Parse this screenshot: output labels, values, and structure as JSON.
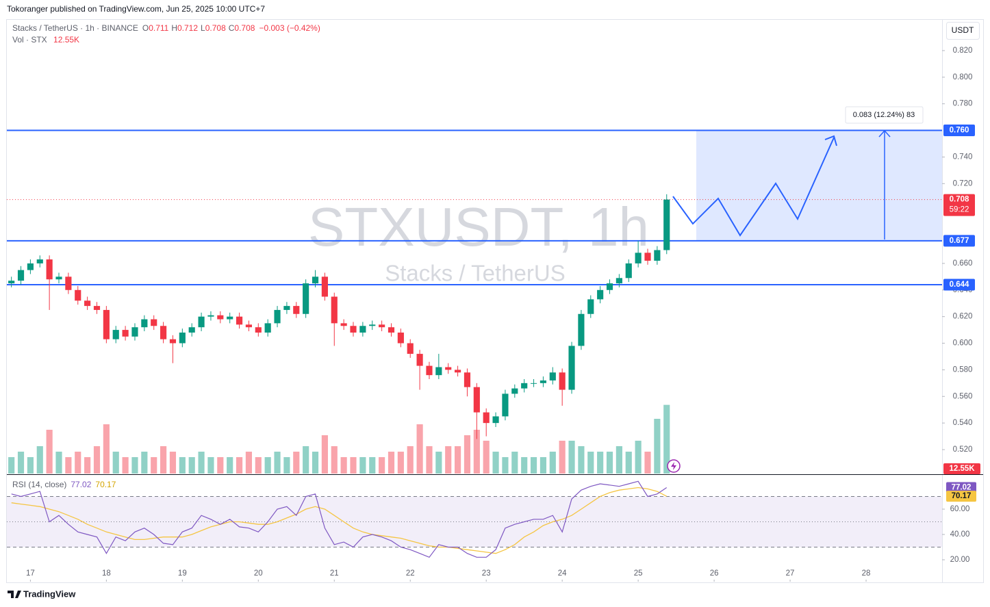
{
  "header": {
    "published": "Tokoranger published on TradingView.com, Jun 25, 2025 10:00 UTC+7",
    "symbol": "Stacks / TetherUS · 1h · BINANCE",
    "ohlc": [
      {
        "k": "O",
        "v": "0.711"
      },
      {
        "k": "H",
        "v": "0.712"
      },
      {
        "k": "L",
        "v": "0.708"
      },
      {
        "k": "C",
        "v": "0.708"
      }
    ],
    "change": "−0.003 (−0.42%)",
    "vol_name": "Vol · STX",
    "vol_value": "12.55K",
    "watermark": "STXUSDT, 1h",
    "watermark_sub": "Stacks / TetherUS",
    "currency": "USDT",
    "countdown": "59:22",
    "measure": "0.083 (12.24%) 83",
    "brand": "TradingView"
  },
  "chart_data": [
    {
      "type": "candlestick",
      "up_color": "#089981",
      "down_color": "#f23645",
      "xlim": [
        16.69,
        29.0
      ],
      "ylim": [
        0.502,
        0.8426
      ],
      "x": [
        16.75,
        16.875,
        17,
        17.125,
        17.25,
        17.375,
        17.5,
        17.625,
        17.75,
        17.875,
        18,
        18.125,
        18.25,
        18.375,
        18.5,
        18.625,
        18.75,
        18.875,
        19,
        19.125,
        19.25,
        19.375,
        19.5,
        19.625,
        19.75,
        19.875,
        20,
        20.125,
        20.25,
        20.375,
        20.5,
        20.625,
        20.75,
        20.875,
        21,
        21.125,
        21.25,
        21.375,
        21.5,
        21.625,
        21.75,
        21.875,
        22,
        22.125,
        22.25,
        22.375,
        22.5,
        22.625,
        22.75,
        22.875,
        23,
        23.125,
        23.25,
        23.375,
        23.5,
        23.625,
        23.75,
        23.875,
        24,
        24.125,
        24.25,
        24.375,
        24.5,
        24.625,
        24.75,
        24.875,
        25,
        25.125,
        25.25,
        25.375
      ],
      "open": [
        0.645,
        0.647,
        0.655,
        0.66,
        0.663,
        0.648,
        0.65,
        0.64,
        0.632,
        0.628,
        0.625,
        0.603,
        0.61,
        0.605,
        0.612,
        0.618,
        0.613,
        0.603,
        0.6,
        0.608,
        0.612,
        0.62,
        0.621,
        0.618,
        0.62,
        0.614,
        0.612,
        0.608,
        0.615,
        0.625,
        0.628,
        0.622,
        0.645,
        0.65,
        0.635,
        0.615,
        0.613,
        0.608,
        0.613,
        0.614,
        0.612,
        0.608,
        0.6,
        0.592,
        0.583,
        0.576,
        0.582,
        0.58,
        0.578,
        0.567,
        0.548,
        0.54,
        0.545,
        0.562,
        0.566,
        0.57,
        0.57,
        0.572,
        0.578,
        0.565,
        0.598,
        0.622,
        0.633,
        0.64,
        0.645,
        0.649,
        0.66,
        0.668,
        0.662,
        0.67
      ],
      "high": [
        0.65,
        0.658,
        0.663,
        0.666,
        0.666,
        0.653,
        0.653,
        0.643,
        0.635,
        0.631,
        0.628,
        0.613,
        0.613,
        0.615,
        0.621,
        0.621,
        0.616,
        0.606,
        0.611,
        0.615,
        0.623,
        0.624,
        0.624,
        0.623,
        0.623,
        0.617,
        0.615,
        0.618,
        0.628,
        0.631,
        0.631,
        0.648,
        0.655,
        0.653,
        0.638,
        0.618,
        0.616,
        0.616,
        0.617,
        0.617,
        0.615,
        0.611,
        0.603,
        0.595,
        0.586,
        0.592,
        0.585,
        0.583,
        0.581,
        0.57,
        0.551,
        0.548,
        0.565,
        0.569,
        0.573,
        0.573,
        0.575,
        0.582,
        0.581,
        0.601,
        0.625,
        0.636,
        0.643,
        0.648,
        0.652,
        0.663,
        0.677,
        0.671,
        0.673,
        0.712
      ],
      "low": [
        0.642,
        0.644,
        0.652,
        0.657,
        0.625,
        0.645,
        0.637,
        0.629,
        0.625,
        0.622,
        0.6,
        0.6,
        0.602,
        0.602,
        0.609,
        0.61,
        0.6,
        0.585,
        0.597,
        0.605,
        0.609,
        0.617,
        0.615,
        0.615,
        0.611,
        0.609,
        0.605,
        0.605,
        0.612,
        0.622,
        0.619,
        0.619,
        0.642,
        0.632,
        0.598,
        0.61,
        0.605,
        0.605,
        0.61,
        0.609,
        0.605,
        0.597,
        0.589,
        0.565,
        0.573,
        0.573,
        0.577,
        0.575,
        0.56,
        0.528,
        0.53,
        0.537,
        0.542,
        0.559,
        0.563,
        0.567,
        0.567,
        0.569,
        0.553,
        0.562,
        0.595,
        0.619,
        0.63,
        0.637,
        0.642,
        0.646,
        0.657,
        0.659,
        0.659,
        0.667
      ],
      "close": [
        0.647,
        0.655,
        0.66,
        0.663,
        0.648,
        0.65,
        0.64,
        0.632,
        0.628,
        0.625,
        0.603,
        0.61,
        0.605,
        0.612,
        0.618,
        0.613,
        0.603,
        0.6,
        0.608,
        0.612,
        0.62,
        0.621,
        0.618,
        0.62,
        0.614,
        0.612,
        0.608,
        0.615,
        0.625,
        0.628,
        0.622,
        0.645,
        0.65,
        0.635,
        0.615,
        0.613,
        0.608,
        0.613,
        0.614,
        0.612,
        0.608,
        0.6,
        0.592,
        0.583,
        0.576,
        0.582,
        0.58,
        0.578,
        0.567,
        0.548,
        0.54,
        0.545,
        0.562,
        0.566,
        0.57,
        0.57,
        0.572,
        0.578,
        0.565,
        0.598,
        0.622,
        0.633,
        0.64,
        0.645,
        0.649,
        0.66,
        0.668,
        0.662,
        0.67,
        0.708
      ],
      "volume": [
        3,
        4,
        3,
        5,
        8,
        4,
        3,
        4,
        3,
        5,
        9,
        4,
        3,
        3,
        4,
        3,
        5,
        4,
        3,
        3,
        4,
        3,
        3,
        3,
        3,
        4,
        3,
        3,
        4,
        3,
        4,
        5,
        4,
        7,
        5,
        3,
        3,
        3,
        3,
        3,
        4,
        4,
        5,
        9,
        5,
        4,
        5,
        5,
        7,
        8,
        6,
        4,
        3,
        4,
        3,
        3,
        3,
        4,
        6,
        6,
        5,
        4,
        4,
        4,
        5,
        4,
        6,
        4,
        10,
        12.55
      ],
      "yticks": [
        {
          "value": 0.52,
          "label": "0.520"
        },
        {
          "value": 0.54,
          "label": "0.540"
        },
        {
          "value": 0.56,
          "label": "0.560"
        },
        {
          "value": 0.58,
          "label": "0.580"
        },
        {
          "value": 0.6,
          "label": "0.600"
        },
        {
          "value": 0.62,
          "label": "0.620"
        },
        {
          "value": 0.64,
          "label": "0.640"
        },
        {
          "value": 0.66,
          "label": "0.660"
        },
        {
          "value": 0.72,
          "label": "0.720"
        },
        {
          "value": 0.74,
          "label": "0.740"
        },
        {
          "value": 0.78,
          "label": "0.780"
        },
        {
          "value": 0.8,
          "label": "0.800"
        },
        {
          "value": 0.82,
          "label": "0.820"
        }
      ],
      "levels": [
        {
          "value": 0.76,
          "label": "0.760"
        },
        {
          "value": 0.677,
          "label": "0.677"
        },
        {
          "value": 0.644,
          "label": "0.644"
        }
      ],
      "level_color": "#2962ff"
    },
    {
      "type": "line",
      "title": "RSI (14, close)",
      "xlim": [
        16.69,
        29.0
      ],
      "ylim": [
        2.7,
        85.4
      ],
      "x": [
        16.75,
        16.875,
        17,
        17.125,
        17.25,
        17.375,
        17.5,
        17.625,
        17.75,
        17.875,
        18,
        18.125,
        18.25,
        18.375,
        18.5,
        18.625,
        18.75,
        18.875,
        19,
        19.125,
        19.25,
        19.375,
        19.5,
        19.625,
        19.75,
        19.875,
        20,
        20.125,
        20.25,
        20.375,
        20.5,
        20.625,
        20.75,
        20.875,
        21,
        21.125,
        21.25,
        21.375,
        21.5,
        21.625,
        21.75,
        21.875,
        22,
        22.125,
        22.25,
        22.375,
        22.5,
        22.625,
        22.75,
        22.875,
        23,
        23.125,
        23.25,
        23.375,
        23.5,
        23.625,
        23.75,
        23.875,
        24,
        24.125,
        24.25,
        24.375,
        24.5,
        24.625,
        24.75,
        24.875,
        25,
        25.125,
        25.25,
        25.375
      ],
      "series": [
        {
          "color": "#7e57c2",
          "values": [
            72,
            70,
            72,
            74,
            50,
            55,
            48,
            42,
            40,
            38,
            25,
            38,
            35,
            42,
            45,
            40,
            33,
            32,
            42,
            45,
            55,
            52,
            48,
            52,
            46,
            45,
            42,
            50,
            60,
            62,
            55,
            70,
            72,
            45,
            32,
            34,
            30,
            38,
            40,
            38,
            35,
            30,
            28,
            25,
            22,
            32,
            30,
            30,
            25,
            22,
            22,
            28,
            45,
            48,
            50,
            52,
            52,
            55,
            42,
            68,
            75,
            78,
            80,
            79,
            78,
            80,
            82,
            70,
            72,
            77.02
          ]
        },
        {
          "color": "#f5c542",
          "values": [
            65,
            64,
            63,
            62,
            60,
            58,
            55,
            52,
            48,
            45,
            42,
            40,
            38,
            36,
            36,
            37,
            38,
            38,
            38,
            40,
            43,
            46,
            48,
            50,
            50,
            49,
            48,
            48,
            50,
            53,
            56,
            60,
            62,
            60,
            55,
            50,
            45,
            42,
            40,
            39,
            38,
            37,
            35,
            33,
            31,
            30,
            30,
            29,
            28,
            27,
            26,
            25,
            28,
            32,
            38,
            42,
            47,
            50,
            52,
            55,
            60,
            65,
            70,
            73,
            75,
            76,
            77,
            76,
            74,
            70.17
          ]
        }
      ],
      "bands": [
        70,
        50,
        30
      ],
      "yticks": [
        {
          "value": 20,
          "label": "20.00"
        },
        {
          "value": 40,
          "label": "40.00"
        },
        {
          "value": 60,
          "label": "60.00"
        }
      ],
      "xticks": [
        17,
        18,
        19,
        20,
        21,
        22,
        23,
        24,
        25,
        26,
        27,
        28
      ]
    }
  ]
}
